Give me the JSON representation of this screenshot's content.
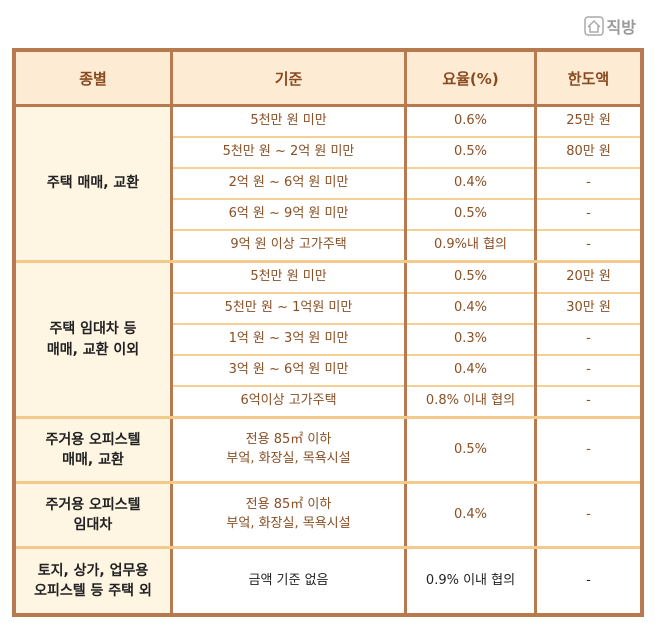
{
  "logo": {
    "text": "직방",
    "icon": "house-icon"
  },
  "headers": [
    "종별",
    "기준",
    "요율(%)",
    "한도액"
  ],
  "groups": [
    {
      "category": [
        "주택 매매, 교환"
      ],
      "rows": [
        [
          "5천만 원 미만",
          "0.6%",
          "25만 원"
        ],
        [
          "5천만 원 ~ 2억 원 미만",
          "0.5%",
          "80만 원"
        ],
        [
          "2억 원 ~ 6억 원 미만",
          "0.4%",
          "-"
        ],
        [
          "6억 원 ~ 9억 원 미만",
          "0.5%",
          "-"
        ],
        [
          "9억 원 이상 고가주택",
          "0.9%내 협의",
          "-"
        ]
      ]
    },
    {
      "category": [
        "주택 임대차 등",
        "매매, 교환 이외"
      ],
      "rows": [
        [
          "5천만 원 미만",
          "0.5%",
          "20만 원"
        ],
        [
          "5천만 원 ~ 1억원 미만",
          "0.4%",
          "30만 원"
        ],
        [
          "1억 원 ~ 3억 원 미만",
          "0.3%",
          "-"
        ],
        [
          "3억 원 ~ 6억 원 미만",
          "0.4%",
          "-"
        ],
        [
          "6억이상 고가주택",
          "0.8% 이내 협의",
          "-"
        ]
      ]
    }
  ],
  "office": [
    {
      "category": [
        "주거용 오피스텔",
        "매매, 교환"
      ],
      "criteria": [
        "전용 85㎡ 이하",
        "부엌, 화장실, 목욕시설"
      ],
      "rate": "0.5%",
      "limit": "-"
    },
    {
      "category": [
        "주거용 오피스텔",
        "임대차"
      ],
      "criteria": [
        "전용 85㎡ 이하",
        "부엌, 화장실, 목욕시설"
      ],
      "rate": "0.4%",
      "limit": "-"
    }
  ],
  "other": {
    "category": [
      "토지, 상가, 업무용",
      "오피스텔 등 주택 외"
    ],
    "criteria": "금액 기준 없음",
    "rate": "0.9% 이내 협의",
    "limit": "-"
  }
}
